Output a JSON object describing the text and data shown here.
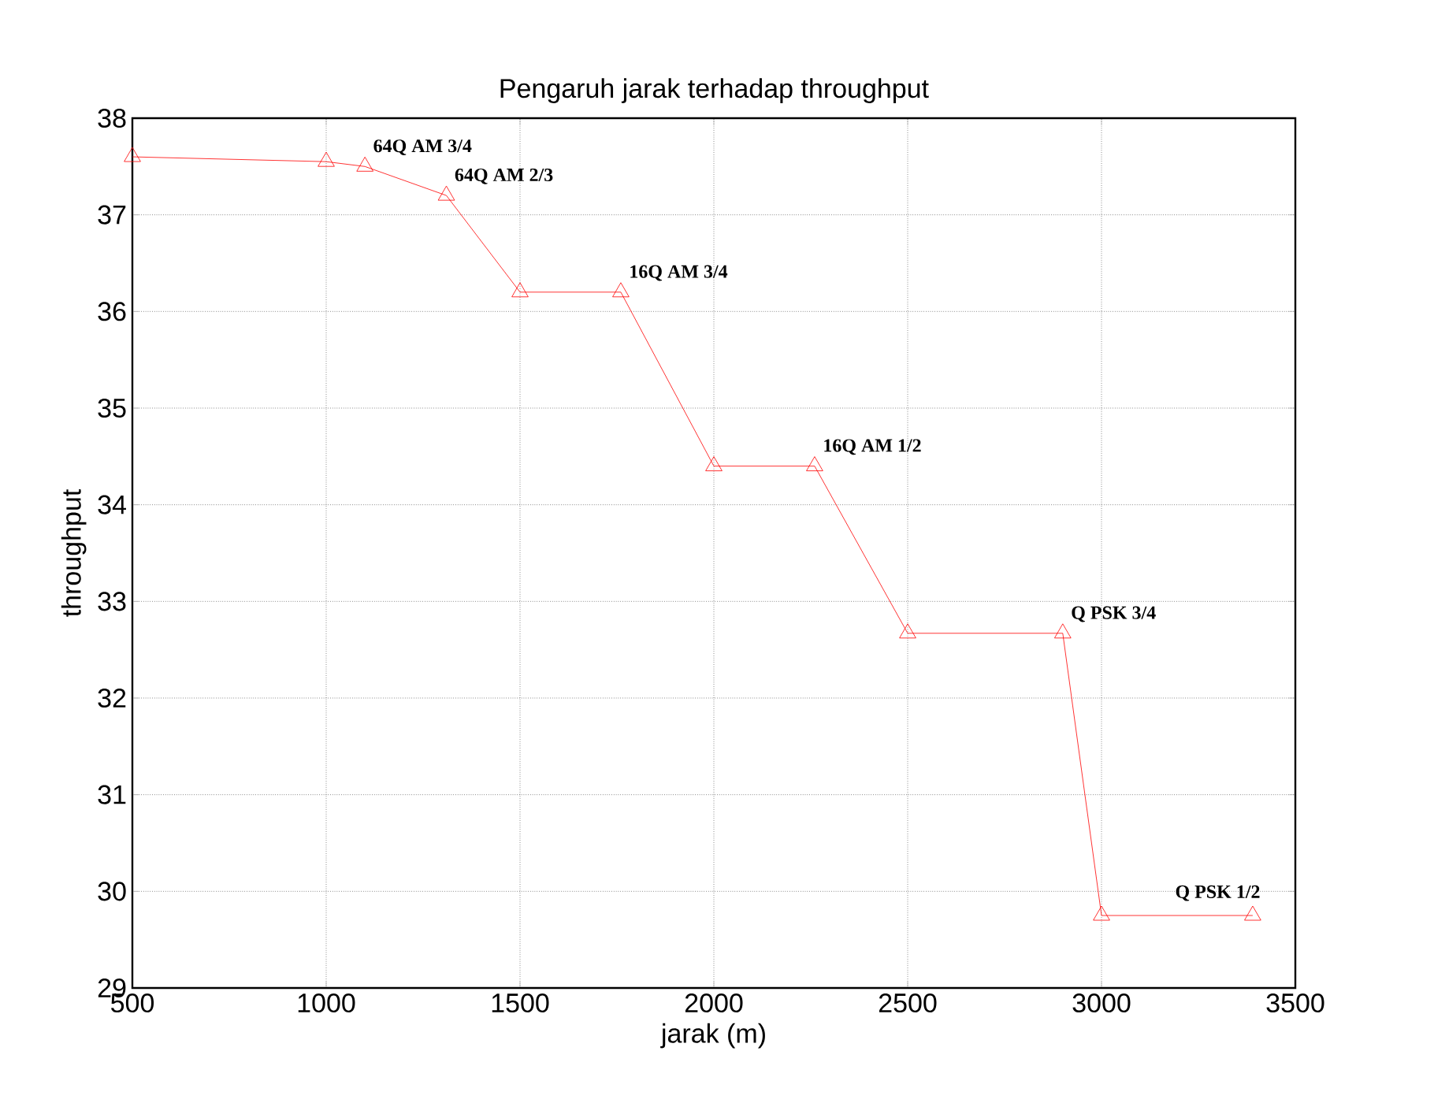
{
  "chart_data": {
    "type": "line",
    "title": "Pengaruh jarak terhadap throughput",
    "xlabel": "jarak (m)",
    "ylabel": "throughput",
    "x": [
      500,
      1000,
      1100,
      1310,
      1500,
      1760,
      2000,
      2260,
      2500,
      2900,
      3000,
      3390
    ],
    "series": [
      {
        "color": "#ff0000",
        "values": [
          37.6,
          37.55,
          37.5,
          37.2,
          36.2,
          36.2,
          34.4,
          34.4,
          32.67,
          32.67,
          29.75,
          29.75
        ]
      }
    ],
    "marker": "triangle",
    "line_style": "solid",
    "grid": true,
    "xlim": [
      500,
      3500
    ],
    "xticks": [
      500,
      1000,
      1500,
      2000,
      2500,
      3000,
      3500
    ],
    "ylim": [
      29,
      38
    ],
    "yticks": [
      29,
      30,
      31,
      32,
      33,
      34,
      35,
      36,
      37,
      38
    ],
    "annotations": [
      {
        "text": "64Q AM 3/4",
        "x": 1100,
        "y": 37.5
      },
      {
        "text": "64Q AM 2/3",
        "x": 1310,
        "y": 37.2
      },
      {
        "text": "16Q AM 3/4",
        "x": 1760,
        "y": 36.2
      },
      {
        "text": "16Q AM 1/2",
        "x": 2260,
        "y": 34.4
      },
      {
        "text": "Q PSK 3/4",
        "x": 2900,
        "y": 32.67
      },
      {
        "text": "Q PSK 1/2",
        "x": 3390,
        "y": 29.75
      }
    ]
  }
}
